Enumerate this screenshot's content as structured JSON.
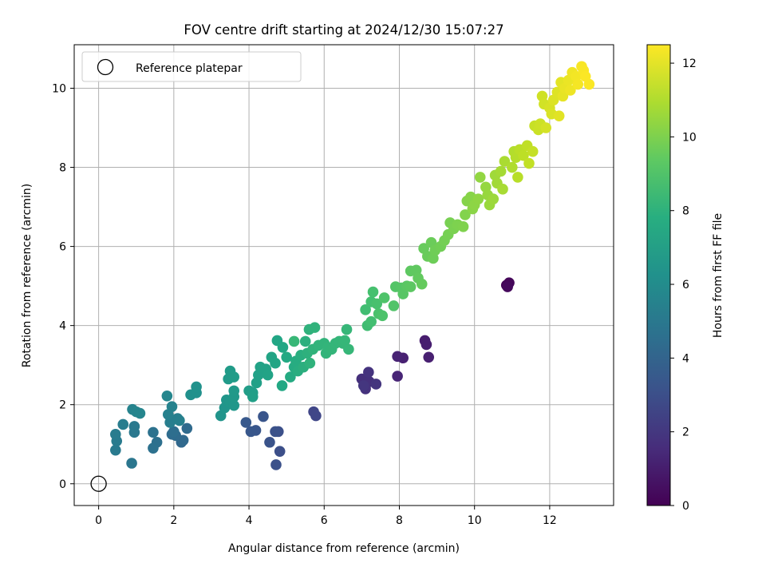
{
  "chart_data": {
    "type": "scatter",
    "title": "FOV centre drift starting at 2024/12/30 15:07:27",
    "xlabel": "Angular distance from reference (arcmin)",
    "ylabel": "Rotation from reference (arcmin)",
    "xlim": [
      -0.65,
      13.7
    ],
    "ylim": [
      -0.55,
      11.1
    ],
    "xticks": [
      0,
      2,
      4,
      6,
      8,
      10,
      12
    ],
    "yticks": [
      0,
      2,
      4,
      6,
      8,
      10
    ],
    "grid": true,
    "legend": {
      "placement": "top-left",
      "entries": [
        "Reference platepar"
      ]
    },
    "reference_point": {
      "x": 0,
      "y": 0
    },
    "colorbar": {
      "label": "Hours from first FF file",
      "range": [
        0,
        12.5
      ],
      "ticks": [
        0,
        2,
        4,
        6,
        8,
        10,
        12
      ],
      "colormap": "viridis"
    },
    "points": [
      [
        10.85,
        5.02,
        0.1
      ],
      [
        10.92,
        5.08,
        0.2
      ],
      [
        10.88,
        4.98,
        0.3
      ],
      [
        8.68,
        3.62,
        1.0
      ],
      [
        8.72,
        3.52,
        1.05
      ],
      [
        8.78,
        3.2,
        1.1
      ],
      [
        8.1,
        3.18,
        1.15
      ],
      [
        7.95,
        3.22,
        1.2
      ],
      [
        7.95,
        2.72,
        1.3
      ],
      [
        7.0,
        2.65,
        1.7
      ],
      [
        7.2,
        2.58,
        1.75
      ],
      [
        7.1,
        2.4,
        1.8
      ],
      [
        7.18,
        2.82,
        1.85
      ],
      [
        7.38,
        2.52,
        1.9
      ],
      [
        7.05,
        2.48,
        1.95
      ],
      [
        5.72,
        1.82,
        2.6
      ],
      [
        5.78,
        1.72,
        2.65
      ],
      [
        4.82,
        0.82,
        3.0
      ],
      [
        4.78,
        1.32,
        3.05
      ],
      [
        4.72,
        0.48,
        3.1
      ],
      [
        4.7,
        1.32,
        3.15
      ],
      [
        4.55,
        1.05,
        3.2
      ],
      [
        4.38,
        1.7,
        3.3
      ],
      [
        4.18,
        1.35,
        3.35
      ],
      [
        4.05,
        1.32,
        3.4
      ],
      [
        3.92,
        1.55,
        3.45
      ],
      [
        2.2,
        1.05,
        4.2
      ],
      [
        2.25,
        1.1,
        4.25
      ],
      [
        2.35,
        1.4,
        4.3
      ],
      [
        2.05,
        1.22,
        4.35
      ],
      [
        1.95,
        1.25,
        4.4
      ],
      [
        2.0,
        1.32,
        4.5
      ],
      [
        1.55,
        1.05,
        4.6
      ],
      [
        1.45,
        0.9,
        4.65
      ],
      [
        1.45,
        1.3,
        4.7
      ],
      [
        0.88,
        0.52,
        4.9
      ],
      [
        0.95,
        1.3,
        5.0
      ],
      [
        0.95,
        1.45,
        5.05
      ],
      [
        0.45,
        0.85,
        5.1
      ],
      [
        0.48,
        1.08,
        5.15
      ],
      [
        0.45,
        1.25,
        5.2
      ],
      [
        0.65,
        1.5,
        5.25
      ],
      [
        1.9,
        1.55,
        5.3
      ],
      [
        2.1,
        1.65,
        5.35
      ],
      [
        2.15,
        1.6,
        5.4
      ],
      [
        1.85,
        1.75,
        5.45
      ],
      [
        1.95,
        1.95,
        5.5
      ],
      [
        0.9,
        1.88,
        5.55
      ],
      [
        1.0,
        1.82,
        5.6
      ],
      [
        1.1,
        1.78,
        5.65
      ],
      [
        1.82,
        2.22,
        5.7
      ],
      [
        2.45,
        2.25,
        6.2
      ],
      [
        2.6,
        2.3,
        6.25
      ],
      [
        2.6,
        2.45,
        6.3
      ],
      [
        3.25,
        1.72,
        6.4
      ],
      [
        3.35,
        1.92,
        6.45
      ],
      [
        3.4,
        2.12,
        6.5
      ],
      [
        3.5,
        2.05,
        6.55
      ],
      [
        3.6,
        1.98,
        6.6
      ],
      [
        3.6,
        2.2,
        6.65
      ],
      [
        3.6,
        2.35,
        6.7
      ],
      [
        3.45,
        2.65,
        6.75
      ],
      [
        3.5,
        2.85,
        6.8
      ],
      [
        3.6,
        2.7,
        6.85
      ],
      [
        4.0,
        2.35,
        6.9
      ],
      [
        4.1,
        2.3,
        6.95
      ],
      [
        4.1,
        2.2,
        7.0
      ],
      [
        4.2,
        2.55,
        7.05
      ],
      [
        4.25,
        2.75,
        7.1
      ],
      [
        4.3,
        2.95,
        7.15
      ],
      [
        4.45,
        2.9,
        7.2
      ],
      [
        4.5,
        2.75,
        7.25
      ],
      [
        4.6,
        3.2,
        7.3
      ],
      [
        4.7,
        3.05,
        7.35
      ],
      [
        4.75,
        3.62,
        7.4
      ],
      [
        4.9,
        3.45,
        7.45
      ],
      [
        4.88,
        2.48,
        7.5
      ],
      [
        5.0,
        3.2,
        7.55
      ],
      [
        5.1,
        2.7,
        7.6
      ],
      [
        5.2,
        2.95,
        7.65
      ],
      [
        5.25,
        3.1,
        7.7
      ],
      [
        5.3,
        2.85,
        7.75
      ],
      [
        5.38,
        3.25,
        7.8
      ],
      [
        5.45,
        2.95,
        7.85
      ],
      [
        5.5,
        3.6,
        7.9
      ],
      [
        5.55,
        3.3,
        7.95
      ],
      [
        5.6,
        3.9,
        8.0
      ],
      [
        5.62,
        3.05,
        8.02
      ],
      [
        5.7,
        3.4,
        8.04
      ],
      [
        5.75,
        3.95,
        8.06
      ],
      [
        5.85,
        3.5,
        8.08
      ],
      [
        6.0,
        3.55,
        8.1
      ],
      [
        6.05,
        3.3,
        8.12
      ],
      [
        6.1,
        3.45,
        8.14
      ],
      [
        6.2,
        3.4,
        8.16
      ],
      [
        6.3,
        3.55,
        8.18
      ],
      [
        6.4,
        3.6,
        8.2
      ],
      [
        6.5,
        3.55,
        8.22
      ],
      [
        6.55,
        3.62,
        8.24
      ],
      [
        6.6,
        3.9,
        8.26
      ],
      [
        6.65,
        3.4,
        8.28
      ],
      [
        5.2,
        3.6,
        8.3
      ],
      [
        7.15,
        4.0,
        8.6
      ],
      [
        7.1,
        4.4,
        8.65
      ],
      [
        7.25,
        4.1,
        8.7
      ],
      [
        7.25,
        4.6,
        8.75
      ],
      [
        7.3,
        4.85,
        8.8
      ],
      [
        7.4,
        4.55,
        8.85
      ],
      [
        7.45,
        4.3,
        8.9
      ],
      [
        7.55,
        4.25,
        8.95
      ],
      [
        7.6,
        4.7,
        9.0
      ],
      [
        7.85,
        4.5,
        9.05
      ],
      [
        7.9,
        4.98,
        9.1
      ],
      [
        8.05,
        4.95,
        9.15
      ],
      [
        8.1,
        4.8,
        9.2
      ],
      [
        8.2,
        5.0,
        9.25
      ],
      [
        8.3,
        4.98,
        9.3
      ],
      [
        8.3,
        5.38,
        9.35
      ],
      [
        8.45,
        5.4,
        9.4
      ],
      [
        8.5,
        5.2,
        9.45
      ],
      [
        8.6,
        5.05,
        9.5
      ],
      [
        8.65,
        5.95,
        9.55
      ],
      [
        8.75,
        5.75,
        9.6
      ],
      [
        8.85,
        6.1,
        9.65
      ],
      [
        8.9,
        5.7,
        9.7
      ],
      [
        8.95,
        5.9,
        9.75
      ],
      [
        9.1,
        6.0,
        9.8
      ],
      [
        9.2,
        6.15,
        9.85
      ],
      [
        9.3,
        6.3,
        9.9
      ],
      [
        9.35,
        6.6,
        9.95
      ],
      [
        9.45,
        6.45,
        10.0
      ],
      [
        9.55,
        6.55,
        10.05
      ],
      [
        9.7,
        6.5,
        10.1
      ],
      [
        9.75,
        6.8,
        10.15
      ],
      [
        9.8,
        7.15,
        10.2
      ],
      [
        9.9,
        7.25,
        10.25
      ],
      [
        9.95,
        6.95,
        10.3
      ],
      [
        10.0,
        7.05,
        10.35
      ],
      [
        10.1,
        7.2,
        10.4
      ],
      [
        10.15,
        7.75,
        10.45
      ],
      [
        10.3,
        7.5,
        10.5
      ],
      [
        10.35,
        7.3,
        10.55
      ],
      [
        10.4,
        7.05,
        10.6
      ],
      [
        10.5,
        7.2,
        10.65
      ],
      [
        10.55,
        7.8,
        10.7
      ],
      [
        10.6,
        7.6,
        10.75
      ],
      [
        10.7,
        7.9,
        10.8
      ],
      [
        10.75,
        7.45,
        10.85
      ],
      [
        10.8,
        8.15,
        10.9
      ],
      [
        11.0,
        8.0,
        11.0
      ],
      [
        11.05,
        8.4,
        11.05
      ],
      [
        11.1,
        8.25,
        11.1
      ],
      [
        11.15,
        7.75,
        11.15
      ],
      [
        11.2,
        8.45,
        11.2
      ],
      [
        11.3,
        8.3,
        11.25
      ],
      [
        11.4,
        8.55,
        11.3
      ],
      [
        11.45,
        8.1,
        11.35
      ],
      [
        11.55,
        8.4,
        11.4
      ],
      [
        11.6,
        9.05,
        11.45
      ],
      [
        11.7,
        8.95,
        11.5
      ],
      [
        11.75,
        9.1,
        11.55
      ],
      [
        11.8,
        9.8,
        11.6
      ],
      [
        11.85,
        9.6,
        11.65
      ],
      [
        11.9,
        9.0,
        11.7
      ],
      [
        12.0,
        9.5,
        11.75
      ],
      [
        12.05,
        9.35,
        11.8
      ],
      [
        12.1,
        9.7,
        11.85
      ],
      [
        12.2,
        9.9,
        11.9
      ],
      [
        12.25,
        9.3,
        11.95
      ],
      [
        12.3,
        10.15,
        12.0
      ],
      [
        12.35,
        9.8,
        12.05
      ],
      [
        12.4,
        10.0,
        12.1
      ],
      [
        12.5,
        10.2,
        12.15
      ],
      [
        12.55,
        9.95,
        12.2
      ],
      [
        12.6,
        10.4,
        12.25
      ],
      [
        12.7,
        10.3,
        12.3
      ],
      [
        12.75,
        10.1,
        12.35
      ],
      [
        12.85,
        10.55,
        12.4
      ],
      [
        12.9,
        10.45,
        12.42
      ],
      [
        13.05,
        10.1,
        12.44
      ],
      [
        12.95,
        10.3,
        12.46
      ]
    ]
  }
}
